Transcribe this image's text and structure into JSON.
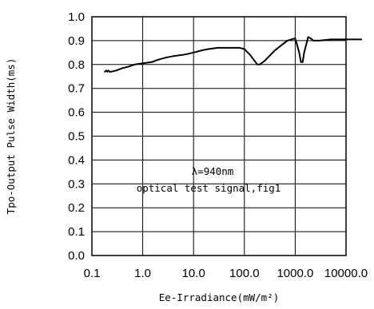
{
  "chart_data": {
    "type": "line",
    "x_scale": "log",
    "xlim": [
      0.1,
      10000.0
    ],
    "ylim": [
      0.0,
      1.0
    ],
    "grid": true,
    "xlabel": "Ee-Irradiance(mW/m²)",
    "ylabel": "Tpo-Output Pulse Width(ms)",
    "x_tick_labels": [
      "0.1",
      "1.0",
      "10.0",
      "100.0",
      "1000.0",
      "10000.0"
    ],
    "y_tick_labels": [
      "0.0",
      "0.1",
      "0.2",
      "0.3",
      "0.4",
      "0.5",
      "0.6",
      "0.7",
      "0.8",
      "0.9",
      "1.0"
    ],
    "annotations": [
      "λ=940nm",
      "optical test signal,fig1"
    ],
    "series": [
      {
        "color": "#000000",
        "x": [
          0.18,
          0.19,
          0.2,
          0.21,
          0.22,
          0.24,
          0.3,
          0.4,
          0.5,
          0.7,
          1.0,
          1.5,
          2.0,
          3.0,
          4.0,
          6.0,
          8.0,
          10.0,
          15.0,
          20.0,
          30.0,
          50.0,
          80.0,
          100.0,
          130.0,
          180.0,
          200.0,
          250.0,
          400.0,
          700.0,
          1000.0,
          1200.0,
          1300.0,
          1400.0,
          1500.0,
          1800.0,
          2000.0,
          2300.0,
          3000.0,
          5000.0,
          10000.0,
          20000.0
        ],
        "y": [
          0.77,
          0.775,
          0.77,
          0.775,
          0.77,
          0.77,
          0.775,
          0.785,
          0.79,
          0.8,
          0.805,
          0.81,
          0.82,
          0.83,
          0.835,
          0.84,
          0.845,
          0.85,
          0.86,
          0.865,
          0.87,
          0.87,
          0.87,
          0.865,
          0.84,
          0.8,
          0.8,
          0.815,
          0.86,
          0.9,
          0.91,
          0.85,
          0.81,
          0.81,
          0.85,
          0.915,
          0.91,
          0.9,
          0.9,
          0.905,
          0.905,
          0.905
        ]
      }
    ]
  }
}
